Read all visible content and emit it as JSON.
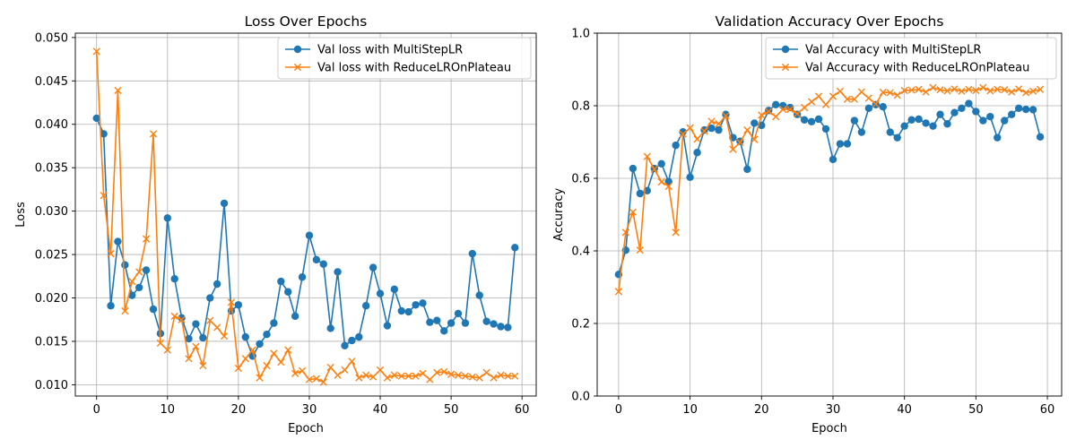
{
  "colors": {
    "blue": "#1f77b4",
    "orange": "#ff7f0e"
  },
  "chart_data": [
    {
      "type": "line",
      "title": "Loss Over Epochs",
      "xlabel": "Epoch",
      "ylabel": "Loss",
      "xlim": [
        -3,
        62
      ],
      "ylim": [
        0.0087,
        0.0505
      ],
      "xticks": [
        0,
        10,
        20,
        30,
        40,
        50,
        60
      ],
      "yticks": [
        0.01,
        0.015,
        0.02,
        0.025,
        0.03,
        0.035,
        0.04,
        0.045,
        0.05
      ],
      "ytick_labels": [
        "0.010",
        "0.015",
        "0.020",
        "0.025",
        "0.030",
        "0.035",
        "0.040",
        "0.045",
        "0.050"
      ],
      "grid": true,
      "legend": "top-right",
      "series": [
        {
          "name": "Val loss with MultiStepLR",
          "marker": "circle",
          "color": "#1f77b4",
          "values": [
            0.0407,
            0.0389,
            0.0191,
            0.0265,
            0.0238,
            0.0203,
            0.0212,
            0.0232,
            0.0187,
            0.0159,
            0.0292,
            0.0222,
            0.0177,
            0.0153,
            0.017,
            0.0154,
            0.02,
            0.0216,
            0.0309,
            0.0185,
            0.0192,
            0.0155,
            0.0133,
            0.0147,
            0.0158,
            0.0171,
            0.0219,
            0.0207,
            0.0179,
            0.0224,
            0.0272,
            0.0244,
            0.0239,
            0.0165,
            0.023,
            0.0145,
            0.0151,
            0.0155,
            0.0191,
            0.0235,
            0.0205,
            0.0168,
            0.021,
            0.0185,
            0.0184,
            0.0192,
            0.0194,
            0.0172,
            0.0174,
            0.0162,
            0.0171,
            0.0182,
            0.0171,
            0.0251,
            0.0203,
            0.0173,
            0.017,
            0.0167,
            0.0166,
            0.0258
          ]
        },
        {
          "name": "Val loss with ReduceLROnPlateau",
          "marker": "x",
          "color": "#ff7f0e",
          "values": [
            0.0484,
            0.0318,
            0.0251,
            0.0439,
            0.0185,
            0.0219,
            0.023,
            0.0268,
            0.0389,
            0.0148,
            0.014,
            0.0179,
            0.0175,
            0.013,
            0.0144,
            0.0122,
            0.0174,
            0.0166,
            0.0156,
            0.0195,
            0.0119,
            0.013,
            0.014,
            0.0108,
            0.0122,
            0.0136,
            0.0126,
            0.014,
            0.0113,
            0.0116,
            0.0106,
            0.0107,
            0.0103,
            0.012,
            0.0111,
            0.0117,
            0.0127,
            0.0108,
            0.0111,
            0.0109,
            0.0117,
            0.0108,
            0.0111,
            0.011,
            0.011,
            0.011,
            0.0113,
            0.0106,
            0.0114,
            0.0115,
            0.0112,
            0.0111,
            0.011,
            0.0109,
            0.0108,
            0.0114,
            0.0108,
            0.0111,
            0.011,
            0.011
          ]
        }
      ]
    },
    {
      "type": "line",
      "title": "Validation Accuracy Over Epochs",
      "xlabel": "Epoch",
      "ylabel": "Accuracy",
      "xlim": [
        -3,
        62
      ],
      "ylim": [
        0.0,
        1.0
      ],
      "xticks": [
        0,
        10,
        20,
        30,
        40,
        50,
        60
      ],
      "yticks": [
        0.0,
        0.2,
        0.4,
        0.6,
        0.8,
        1.0
      ],
      "ytick_labels": [
        "0.0",
        "0.2",
        "0.4",
        "0.6",
        "0.8",
        "1.0"
      ],
      "grid": true,
      "legend": "top-right",
      "series": [
        {
          "name": "Val Accuracy with MultiStepLR",
          "marker": "circle",
          "color": "#1f77b4",
          "values": [
            0.335,
            0.402,
            0.627,
            0.558,
            0.566,
            0.627,
            0.64,
            0.591,
            0.691,
            0.728,
            0.603,
            0.671,
            0.733,
            0.738,
            0.733,
            0.776,
            0.712,
            0.702,
            0.625,
            0.752,
            0.746,
            0.787,
            0.803,
            0.8,
            0.795,
            0.776,
            0.761,
            0.756,
            0.763,
            0.736,
            0.652,
            0.695,
            0.695,
            0.759,
            0.727,
            0.793,
            0.803,
            0.797,
            0.727,
            0.712,
            0.744,
            0.761,
            0.763,
            0.752,
            0.744,
            0.776,
            0.75,
            0.781,
            0.793,
            0.806,
            0.784,
            0.759,
            0.77,
            0.712,
            0.759,
            0.776,
            0.793,
            0.79,
            0.789,
            0.714
          ]
        },
        {
          "name": "Val Accuracy with ReduceLROnPlateau",
          "marker": "x",
          "color": "#ff7f0e",
          "values": [
            0.288,
            0.451,
            0.507,
            0.402,
            0.66,
            0.625,
            0.59,
            0.578,
            0.451,
            0.722,
            0.739,
            0.708,
            0.73,
            0.757,
            0.75,
            0.772,
            0.68,
            0.699,
            0.733,
            0.707,
            0.774,
            0.784,
            0.77,
            0.79,
            0.79,
            0.778,
            0.795,
            0.811,
            0.826,
            0.803,
            0.826,
            0.84,
            0.818,
            0.818,
            0.838,
            0.821,
            0.805,
            0.837,
            0.836,
            0.829,
            0.842,
            0.843,
            0.845,
            0.838,
            0.85,
            0.844,
            0.841,
            0.846,
            0.84,
            0.845,
            0.842,
            0.85,
            0.841,
            0.845,
            0.844,
            0.838,
            0.846,
            0.836,
            0.84,
            0.845
          ]
        }
      ]
    }
  ]
}
